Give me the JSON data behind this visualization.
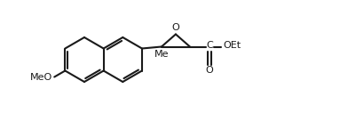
{
  "bg_color": "#ffffff",
  "line_color": "#1a1a1a",
  "text_color": "#1a1a1a",
  "font_family": "DejaVu Sans",
  "figsize": [
    3.83,
    1.45
  ],
  "dpi": 100,
  "lw": 1.5,
  "font_size": 8.0,
  "label_MeO": "MeO",
  "label_Me": "Me",
  "label_C": "C",
  "label_OEt": "OEt",
  "label_O_epoxide": "O",
  "label_O_carbonyl": "O"
}
